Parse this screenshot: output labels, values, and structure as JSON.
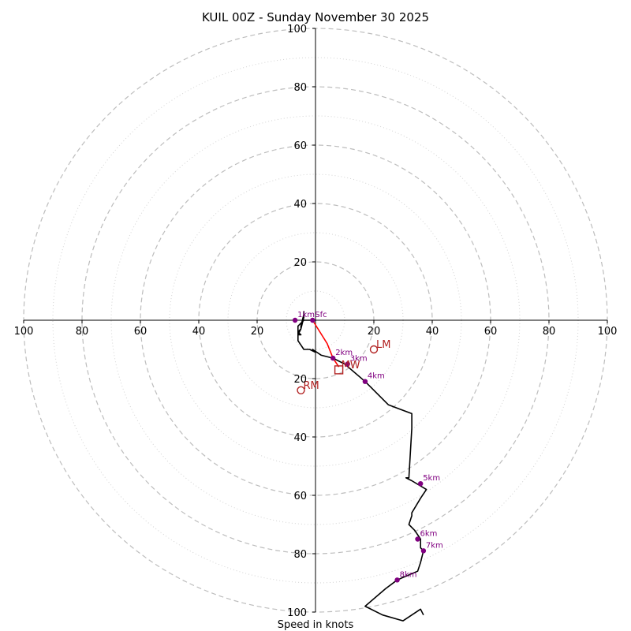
{
  "chart_data": {
    "type": "hodograph",
    "title": "KUIL 00Z - Sunday November 30 2025",
    "xlabel": "Speed in knots",
    "range": [
      -100,
      100
    ],
    "major_rings": [
      20,
      40,
      60,
      80,
      100
    ],
    "minor_rings": [
      10,
      30,
      50,
      70,
      90
    ],
    "tick_labels": [
      "100",
      "80",
      "60",
      "40",
      "20",
      "20",
      "40",
      "60",
      "80",
      "100"
    ],
    "x_ticks": [
      -100,
      -80,
      -60,
      -40,
      -20,
      20,
      40,
      60,
      80,
      100
    ],
    "y_tick_labels": [
      "100",
      "80",
      "60",
      "40",
      "20",
      "20",
      "40",
      "60",
      "80",
      "100"
    ],
    "y_ticks": [
      100,
      80,
      60,
      40,
      20,
      -20,
      -40,
      -60,
      -80,
      -100
    ],
    "trace": [
      [
        -1,
        0
      ],
      [
        -4,
        0
      ],
      [
        -6,
        -2
      ],
      [
        -6,
        -4
      ],
      [
        -5,
        -5
      ],
      [
        -6,
        -5
      ],
      [
        -5,
        -3
      ],
      [
        -5,
        -2
      ],
      [
        -4,
        2
      ],
      [
        -4,
        3
      ],
      [
        -4,
        1
      ],
      [
        -5,
        -3
      ],
      [
        -6,
        -4
      ],
      [
        -6,
        -7
      ],
      [
        -4,
        -10
      ],
      [
        -2,
        -10
      ],
      [
        0,
        -11
      ],
      [
        -1,
        -10
      ],
      [
        2,
        -12
      ],
      [
        6,
        -13
      ],
      [
        10,
        -15
      ],
      [
        17,
        -21
      ],
      [
        25,
        -29
      ],
      [
        33,
        -32
      ],
      [
        33,
        -37
      ],
      [
        32,
        -54
      ],
      [
        31,
        -54
      ],
      [
        33,
        -55
      ],
      [
        38,
        -58
      ],
      [
        36,
        -61
      ],
      [
        33,
        -66
      ],
      [
        33,
        -67
      ],
      [
        32,
        -70
      ],
      [
        34,
        -72
      ],
      [
        36,
        -75
      ],
      [
        36,
        -78
      ],
      [
        37,
        -79
      ],
      [
        36,
        -83
      ],
      [
        35,
        -86
      ],
      [
        28,
        -89
      ],
      [
        24,
        -92
      ],
      [
        17,
        -98
      ],
      [
        23,
        -101
      ],
      [
        30,
        -103
      ],
      [
        36,
        -99
      ],
      [
        37,
        -101
      ]
    ],
    "bunkers_segment": [
      [
        -1,
        0
      ],
      [
        4,
        -8
      ],
      [
        6,
        -13
      ],
      [
        8,
        -16
      ]
    ],
    "heights": [
      {
        "label": "Sfc",
        "u": -1,
        "v": 0
      },
      {
        "label": "1km",
        "u": -7,
        "v": 0
      },
      {
        "label": "2km",
        "u": 6,
        "v": -13
      },
      {
        "label": "3km",
        "u": 11,
        "v": -15
      },
      {
        "label": "4km",
        "u": 17,
        "v": -21
      },
      {
        "label": "5km",
        "u": 36,
        "v": -56
      },
      {
        "label": "6km",
        "u": 35,
        "v": -75
      },
      {
        "label": "7km",
        "u": 37,
        "v": -79
      },
      {
        "label": "8km",
        "u": 28,
        "v": -89
      }
    ],
    "storm_motions": [
      {
        "label": "LM",
        "u": 20,
        "v": -10,
        "marker": "circle"
      },
      {
        "label": "RM",
        "u": -5,
        "v": -24,
        "marker": "circle"
      },
      {
        "label": "MW",
        "u": 8,
        "v": -17,
        "marker": "square"
      }
    ],
    "colors": {
      "trace": "#000000",
      "bunkers": "#ff0000",
      "height_points": "#800080",
      "storm_markers": "#b22222",
      "major_ring": "#bdbdbd",
      "minor_ring": "#d3d3d3"
    }
  }
}
